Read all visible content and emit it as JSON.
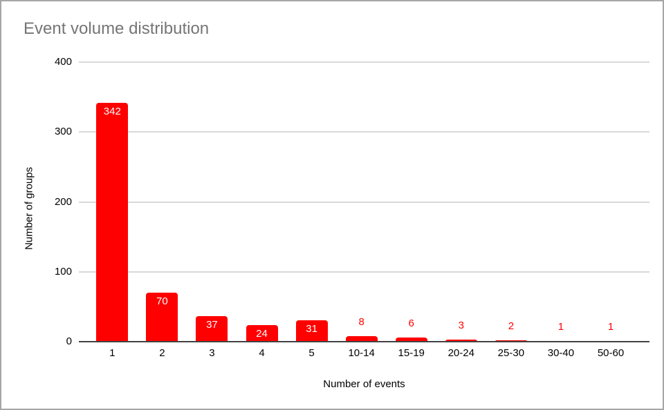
{
  "chart_data": {
    "type": "bar",
    "title": "Event volume distribution",
    "xlabel": "Number of events",
    "ylabel": "Number of groups",
    "categories": [
      "1",
      "2",
      "3",
      "4",
      "5",
      "10-14",
      "15-19",
      "20-24",
      "25-30",
      "30-40",
      "50-60"
    ],
    "values": [
      342,
      70,
      37,
      24,
      31,
      8,
      6,
      3,
      2,
      1,
      1
    ],
    "data_label_placement": [
      "inside",
      "inside",
      "inside",
      "inside",
      "inside",
      "outside",
      "outside",
      "outside",
      "outside",
      "outside",
      "outside"
    ],
    "yticks": [
      0,
      100,
      200,
      300,
      400
    ],
    "ylim": [
      0,
      400
    ],
    "grid": "horizontal",
    "legend": "none",
    "colors": {
      "bar": "#ff0000",
      "label_inside": "#ffffff",
      "label_outside": "#ff0000",
      "title_text": "#757575",
      "axis_text": "#000000",
      "gridline": "#d9d9d9",
      "axis_line": "#424242",
      "widget_border": "#a6a6a6",
      "background": "#ffffff"
    }
  }
}
